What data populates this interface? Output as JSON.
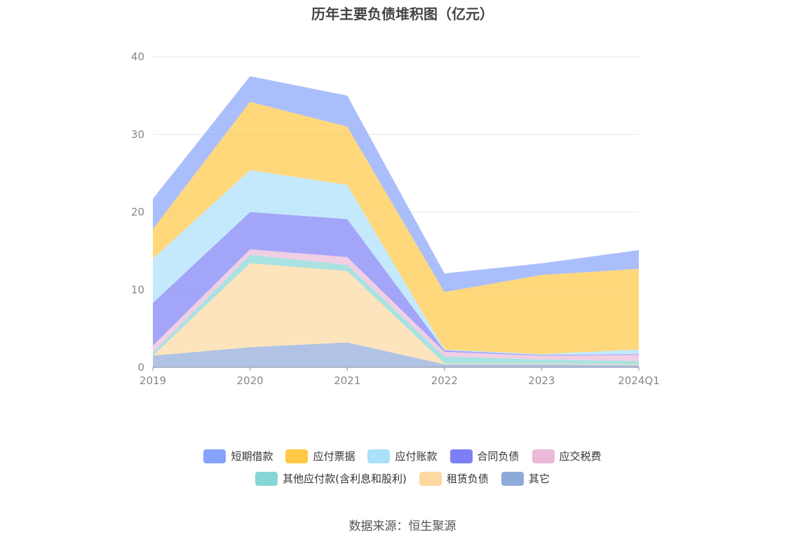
{
  "title": "历年主要负债堆积图（亿元）",
  "source": "数据来源：恒生聚源",
  "chart_data": {
    "type": "area",
    "stacked": true,
    "x": [
      "2019",
      "2020",
      "2021",
      "2022",
      "2023",
      "2024Q1"
    ],
    "ylim": [
      0,
      40
    ],
    "yticks": [
      0,
      10,
      20,
      30,
      40
    ],
    "grid": true,
    "legend_position": "bottom",
    "series": [
      {
        "name": "其它",
        "color": "#8eaad9",
        "values": [
          1.5,
          2.6,
          3.2,
          0.4,
          0.4,
          0.3
        ]
      },
      {
        "name": "租赁负债",
        "color": "#fed8a0",
        "values": [
          0.0,
          10.8,
          9.2,
          0.1,
          0.1,
          0.1
        ]
      },
      {
        "name": "其他应付款(含利息和股利)",
        "color": "#85d6d4",
        "values": [
          0.4,
          1.1,
          0.8,
          0.9,
          0.5,
          0.4
        ]
      },
      {
        "name": "应交税费",
        "color": "#ebb9d9",
        "values": [
          0.9,
          0.7,
          1.0,
          0.6,
          0.5,
          0.8
        ]
      },
      {
        "name": "合同负债",
        "color": "#7c7ff5",
        "values": [
          5.5,
          4.8,
          4.9,
          0.2,
          0.1,
          0.1
        ]
      },
      {
        "name": "应付账款",
        "color": "#abe0fb",
        "values": [
          5.7,
          5.4,
          4.4,
          0.1,
          0.1,
          0.6
        ]
      },
      {
        "name": "应付票据",
        "color": "#ffc845",
        "values": [
          3.8,
          8.8,
          7.5,
          7.4,
          10.2,
          10.4
        ]
      },
      {
        "name": "短期借款",
        "color": "#87a3fb",
        "values": [
          3.9,
          3.3,
          4.0,
          2.4,
          1.5,
          2.4
        ]
      }
    ],
    "legend_order": [
      "短期借款",
      "应付票据",
      "应付账款",
      "合同负债",
      "应交税费",
      "其他应付款(含利息和股利)",
      "租赁负债",
      "其它"
    ]
  }
}
